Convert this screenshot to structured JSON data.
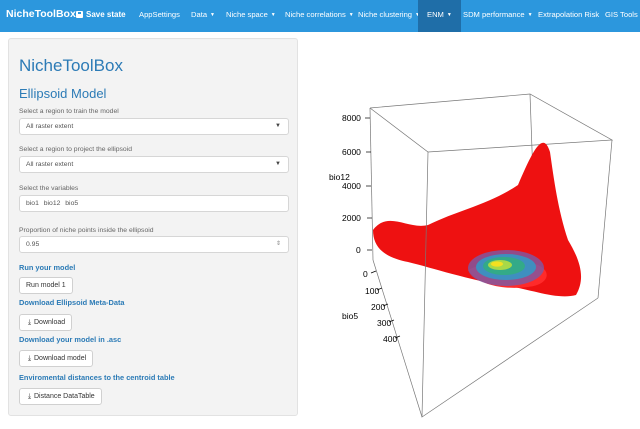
{
  "navbar": {
    "brand": "NicheToolBox",
    "save_label": "Save state",
    "items": [
      {
        "label": "AppSettings",
        "caret": ""
      },
      {
        "label": "Data",
        "caret": "▼"
      },
      {
        "label": "Niche space",
        "caret": "▼"
      },
      {
        "label": "Niche correlations",
        "caret": "▼"
      },
      {
        "label": "Niche clustering",
        "caret": "▼"
      },
      {
        "label": "ENM",
        "caret": "▼"
      },
      {
        "label": "SDM performance",
        "caret": "▼"
      },
      {
        "label": "Extrapolation Risk",
        "caret": ""
      },
      {
        "label": "GIS Tools",
        "caret": ""
      }
    ]
  },
  "sidebar": {
    "title": "NicheToolBox",
    "subtitle": "Ellipsoid Model",
    "train_label": "Select a region to train the model",
    "train_value": "All raster extent",
    "project_label": "Select a region to project the ellipsoid",
    "project_value": "All raster extent",
    "vars_label": "Select the variables",
    "vars": [
      "bio1",
      "bio12",
      "bio5"
    ],
    "prop_label": "Proportion of niche points inside the ellipsoid",
    "prop_value": "0.95",
    "run_header": "Run your model",
    "run_button": "Run model 1",
    "meta_header": "Download Ellipsoid Meta-Data",
    "download_button": "Download",
    "asc_header": "Download your model in .asc",
    "download_model_button": "Download model",
    "dist_header": "Enviromental distances to the centroid table",
    "dist_button": "Distance DataTable"
  },
  "plot": {
    "z_label": "bio12",
    "z_ticks": [
      "0",
      "2000",
      "4000",
      "6000",
      "8000"
    ],
    "y_label": "bio5",
    "y_ticks": [
      "0",
      "100",
      "200",
      "300",
      "400"
    ],
    "colors": {
      "points": "#ee1111",
      "center": "#33aa88",
      "inner": "#f5e020"
    }
  }
}
